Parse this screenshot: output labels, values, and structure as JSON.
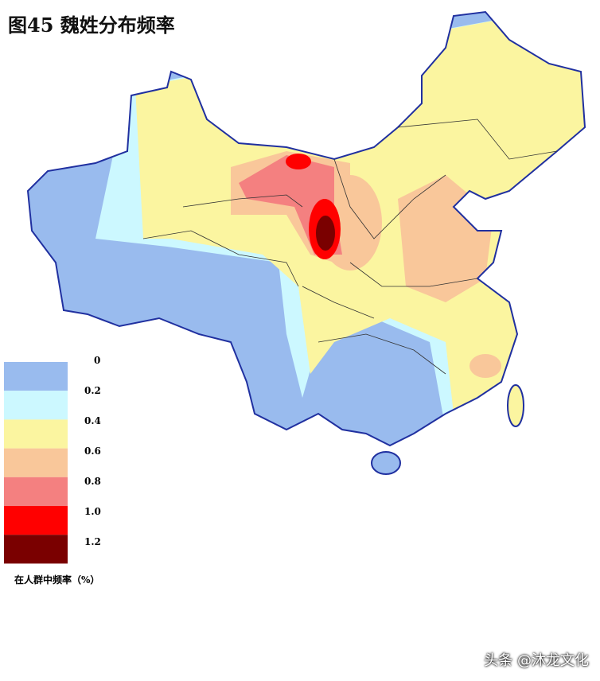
{
  "header": {
    "title": "图45  魏姓分布频率"
  },
  "legend": {
    "labels": [
      "0",
      "0.2",
      "0.4",
      "0.6",
      "0.8",
      "1.0",
      "1.2"
    ],
    "colors": [
      "#99bbee",
      "#ccf8ff",
      "#fbf5a0",
      "#f9c79a",
      "#f48080",
      "#ff0000",
      "#7a0000"
    ],
    "title": "在人群中频率（%）"
  },
  "watermark": "头条 @沐龙文化"
}
